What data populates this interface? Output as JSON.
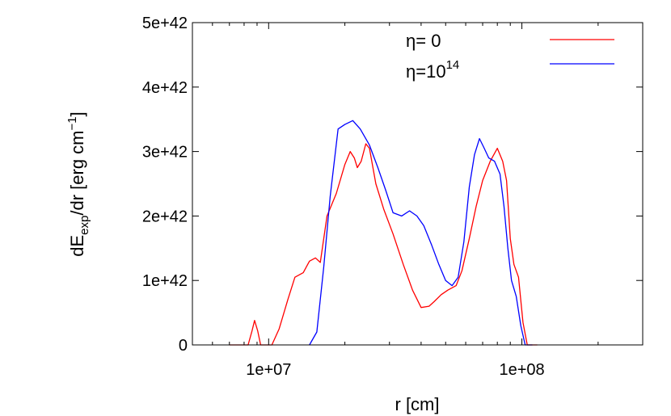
{
  "chart_data": {
    "type": "line",
    "x_scale": "log",
    "xlim": [
      5000000,
      300000000
    ],
    "ylim": [
      0,
      5e+42
    ],
    "grid": false,
    "legend_position": "top-right",
    "xlabel": "r [cm]",
    "ylabel": {
      "main": "dE",
      "sub": "exp",
      "rest": "/dr [erg cm",
      "sup": "−1",
      "close": "]"
    },
    "x_ticks": [
      {
        "value": 10000000,
        "label": "1e+07"
      },
      {
        "value": 100000000,
        "label": "1e+08"
      }
    ],
    "y_ticks": [
      {
        "value": 0,
        "label": "0"
      },
      {
        "value": 1e+42,
        "label": "1e+42"
      },
      {
        "value": 2e+42,
        "label": "2e+42"
      },
      {
        "value": 3e+42,
        "label": "3e+42"
      },
      {
        "value": 4e+42,
        "label": "4e+42"
      },
      {
        "value": 5e+42,
        "label": "5e+42"
      }
    ],
    "legend": [
      {
        "label_main": "η= 0",
        "label_sup": "",
        "color": "#ff0000"
      },
      {
        "label_main": "η=10",
        "label_sup": "14",
        "color": "#0000ff"
      }
    ],
    "series": [
      {
        "color": "#ff0000",
        "points": [
          [
            7000000,
            0
          ],
          [
            8300000,
            0
          ],
          [
            8600000,
            2.2e+41
          ],
          [
            8800000,
            3.8e+41
          ],
          [
            9050000,
            2.2e+41
          ],
          [
            9300000,
            0
          ],
          [
            10300000,
            0
          ],
          [
            11000000,
            2.5e+41
          ],
          [
            11900000,
            7e+41
          ],
          [
            12700000,
            1.05e+42
          ],
          [
            13700000,
            1.12e+42
          ],
          [
            14500000,
            1.3e+42
          ],
          [
            15300000,
            1.35e+42
          ],
          [
            16000000,
            1.28e+42
          ],
          [
            17000000,
            2e+42
          ],
          [
            18500000,
            2.35e+42
          ],
          [
            20000000,
            2.8e+42
          ],
          [
            21000000,
            3e+42
          ],
          [
            21800000,
            2.9e+42
          ],
          [
            22400000,
            2.75e+42
          ],
          [
            23200000,
            2.85e+42
          ],
          [
            24200000,
            3.12e+42
          ],
          [
            25000000,
            3.05e+42
          ],
          [
            26500000,
            2.5e+42
          ],
          [
            28500000,
            2.1e+42
          ],
          [
            31000000,
            1.72e+42
          ],
          [
            34000000,
            1.25e+42
          ],
          [
            37000000,
            8.5e+41
          ],
          [
            40000000,
            5.8e+41
          ],
          [
            43000000,
            6e+41
          ],
          [
            45000000,
            6.7e+41
          ],
          [
            48000000,
            7.8e+41
          ],
          [
            51000000,
            8.5e+41
          ],
          [
            55000000,
            9.2e+41
          ],
          [
            58000000,
            1.15e+42
          ],
          [
            62000000,
            1.65e+42
          ],
          [
            66000000,
            2.15e+42
          ],
          [
            70000000,
            2.55e+42
          ],
          [
            75000000,
            2.85e+42
          ],
          [
            80000000,
            3.05e+42
          ],
          [
            84000000,
            2.85e+42
          ],
          [
            87000000,
            2.55e+42
          ],
          [
            90000000,
            1.65e+42
          ],
          [
            93000000,
            1.25e+42
          ],
          [
            97000000,
            1.05e+42
          ],
          [
            101000000,
            3.5e+41
          ],
          [
            105000000,
            0
          ],
          [
            115000000,
            0
          ]
        ]
      },
      {
        "color": "#0000ff",
        "points": [
          [
            14500000,
            0
          ],
          [
            15500000,
            2e+41
          ],
          [
            16500000,
            1.2e+42
          ],
          [
            17500000,
            2.3e+42
          ],
          [
            18800000,
            3.35e+42
          ],
          [
            20000000,
            3.42e+42
          ],
          [
            21500000,
            3.48e+42
          ],
          [
            23000000,
            3.35e+42
          ],
          [
            25000000,
            3.1e+42
          ],
          [
            27000000,
            2.75e+42
          ],
          [
            29000000,
            2.4e+42
          ],
          [
            31000000,
            2.05e+42
          ],
          [
            33500000,
            2e+42
          ],
          [
            36000000,
            2.08e+42
          ],
          [
            38500000,
            2e+42
          ],
          [
            41000000,
            1.85e+42
          ],
          [
            44000000,
            1.55e+42
          ],
          [
            47000000,
            1.25e+42
          ],
          [
            50000000,
            1e+42
          ],
          [
            53000000,
            9.2e+41
          ],
          [
            56000000,
            1.05e+42
          ],
          [
            59000000,
            1.6e+42
          ],
          [
            62000000,
            2.45e+42
          ],
          [
            65000000,
            2.95e+42
          ],
          [
            68000000,
            3.2e+42
          ],
          [
            71000000,
            3.05e+42
          ],
          [
            74000000,
            2.9e+42
          ],
          [
            78000000,
            2.85e+42
          ],
          [
            82000000,
            2.65e+42
          ],
          [
            85000000,
            2.15e+42
          ],
          [
            88000000,
            1.5e+42
          ],
          [
            91000000,
            1e+42
          ],
          [
            95000000,
            7.5e+41
          ],
          [
            99000000,
            3e+41
          ],
          [
            103000000,
            0
          ],
          [
            110000000,
            0
          ]
        ]
      }
    ]
  }
}
